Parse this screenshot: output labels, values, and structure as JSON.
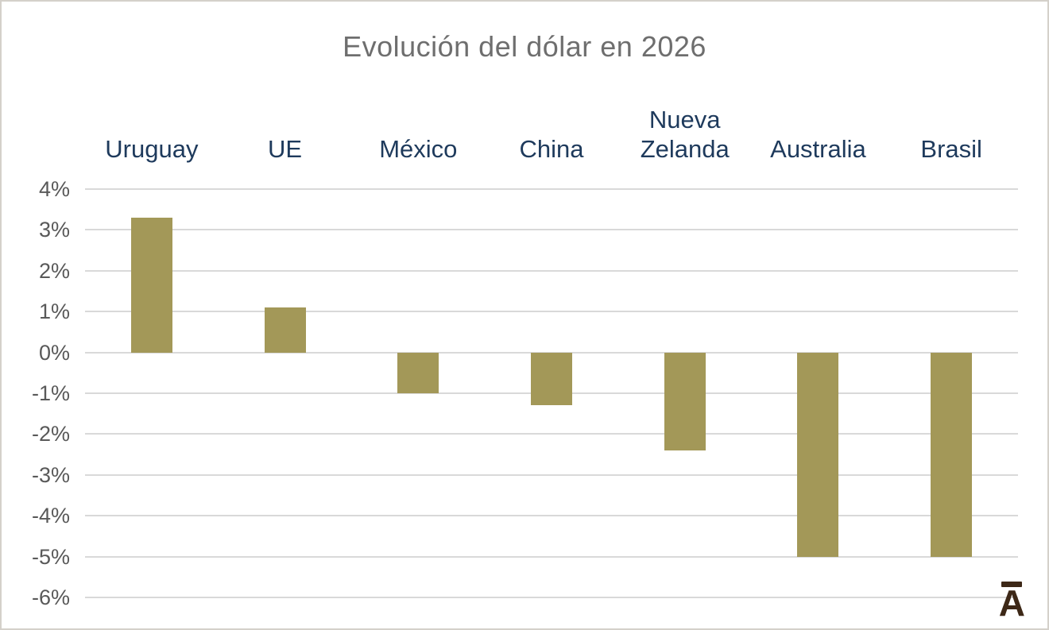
{
  "chart_data": {
    "type": "bar",
    "title": "Evolución del dólar en 2026",
    "categories": [
      "Uruguay",
      "UE",
      "México",
      "China",
      "Nueva Zelanda",
      "Australia",
      "Brasil"
    ],
    "values": [
      3.3,
      1.1,
      -1.0,
      -1.3,
      -2.4,
      -5.0,
      -5.0
    ],
    "value_unit": "%",
    "ylim": [
      -6,
      4
    ],
    "ytick_step": 1,
    "ytick_labels": [
      "4%",
      "3%",
      "2%",
      "1%",
      "0%",
      "-1%",
      "-2%",
      "-3%",
      "-4%",
      "-5%",
      "-6%"
    ],
    "grid": true,
    "legend_position": "none",
    "xlabel": "",
    "ylabel": "",
    "colors": {
      "bar": "#a39858",
      "gridline": "#d9d9d9",
      "title": "#6e6e6e",
      "category_labels": "#1e3a5c",
      "tick_labels": "#595959",
      "background": "#ffffff",
      "frame_border": "#d4d0ca"
    }
  },
  "logo": {
    "letter": "A",
    "description": "a-with-macron-brand-mark",
    "color": "#3d2817"
  }
}
